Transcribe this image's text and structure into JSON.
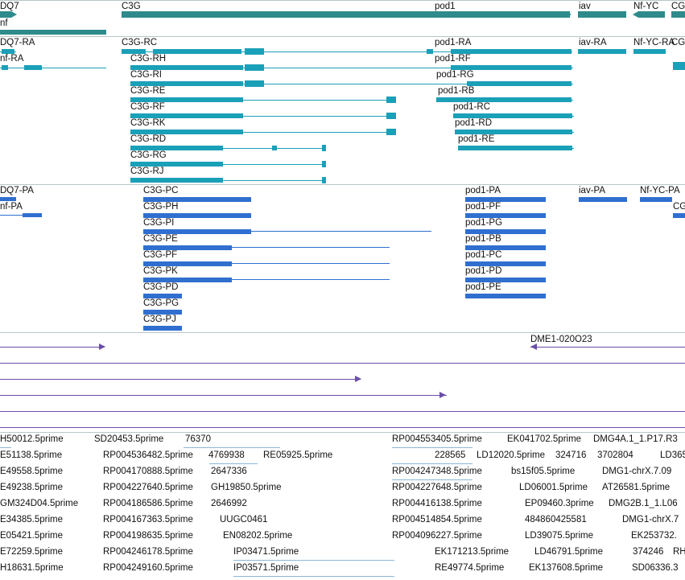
{
  "tracks": {
    "genes": [
      {
        "name": "DQ7",
        "label": "DQ7"
      },
      {
        "name": "nf",
        "label": "nf"
      },
      {
        "name": "C3G",
        "label": "C3G"
      },
      {
        "name": "pod1",
        "label": "pod1"
      },
      {
        "name": "iav",
        "label": "iav"
      },
      {
        "name": "Nf-YC",
        "label": "Nf-YC"
      },
      {
        "name": "CG",
        "label": "CG"
      }
    ],
    "transcripts": [
      "DQ7-RA",
      "nf-RA",
      "C3G-RC",
      "C3G-RH",
      "C3G-RI",
      "C3G-RE",
      "C3G-RF",
      "C3G-RK",
      "C3G-RD",
      "C3G-RG",
      "C3G-RJ",
      "pod1-RA",
      "pod1-RF",
      "pod1-RG",
      "pod1-RB",
      "pod1-RC",
      "pod1-RD",
      "pod1-RE",
      "iav-RA",
      "Nf-YC-RA",
      "CG"
    ],
    "proteins": [
      "DQ7-PA",
      "nf-PA",
      "C3G-PC",
      "C3G-PH",
      "C3G-PI",
      "C3G-PE",
      "C3G-PF",
      "C3G-PK",
      "C3G-PD",
      "C3G-PG",
      "C3G-PJ",
      "pod1-PA",
      "pod1-PF",
      "pod1-PG",
      "pod1-PB",
      "pod1-PC",
      "pod1-PD",
      "pod1-PE",
      "iav-PA",
      "Nf-YC-PA",
      "CG"
    ],
    "alignment": [
      "DME1-020O23"
    ],
    "ests": [
      "H50012.5prime",
      "SD20453.5prime",
      "76370",
      "RP004553405.5prime",
      "EK041702.5prime",
      "DMG4A.1_1.P17.R3",
      "E51138.5prime",
      "RP004536482.5prime",
      "4769938",
      "RE05925.5prime",
      "228565",
      "LD12020.5prime",
      "324716",
      "3702804",
      "LD365",
      "E49558.5prime",
      "RP004170888.5prime",
      "2647336",
      "RP004247348.5prime",
      "bs15f05.5prime",
      "DMG1-chrX.7.09",
      "E49238.5prime",
      "RP004227640.5prime",
      "GH19850.5prime",
      "RP004227648.5prime",
      "LD06001.5prime",
      "AT26581.5prime",
      "GM324D04.5prime",
      "RP004186586.5prime",
      "2646992",
      "RP004416138.5prime",
      "EP09460.3prime",
      "DMG2B.1_1.L06",
      "E34385.5prime",
      "RP004167363.5prime",
      "UUGC0461",
      "RP004514854.5prime",
      "484860425581",
      "DMG1-chrX.7",
      "E05421.5prime",
      "RP004198635.5prime",
      "EN08202.5prime",
      "RP004096227.5prime",
      "LD39075.5prime",
      "EK253732.",
      "E72259.5prime",
      "RP004246178.5prime",
      "IP03471.5prime",
      "EK171213.5prime",
      "LD46791.5prime",
      "374246",
      "RH",
      "H18631.5prime",
      "RP004249160.5prime",
      "IP03571.5prime",
      "RE49774.5prime",
      "EK137608.5prime",
      "SD06336.3"
    ]
  },
  "colors": {
    "gene": "#2e8b8b",
    "transcript": "#1aa0b8",
    "protein": "#2f6fd0",
    "alignment": "#6a4ea6",
    "est": "#8ab8d8"
  }
}
